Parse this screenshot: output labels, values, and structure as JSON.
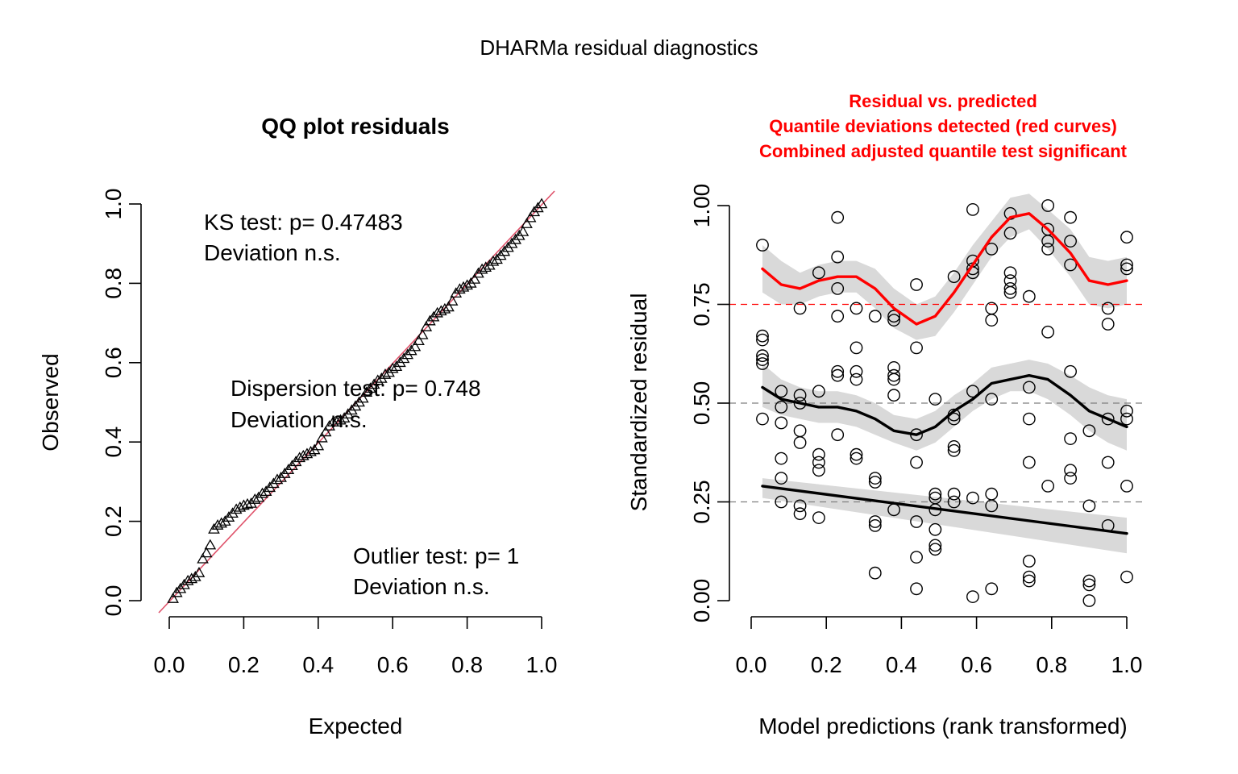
{
  "figure": {
    "title": "DHARMa residual diagnostics",
    "colors": {
      "qq_line": "#DF536B",
      "red": "#FF0000",
      "band": "#D9D9D9",
      "ink": "#000000",
      "ref_dash": "#7F7F7F"
    }
  },
  "chart_data": [
    {
      "type": "scatter",
      "title": "QQ plot residuals",
      "xlabel": "Expected",
      "ylabel": "Observed",
      "xlim": [
        0,
        1
      ],
      "ylim": [
        0,
        1
      ],
      "x_ticks": [
        "0.0",
        "0.2",
        "0.4",
        "0.6",
        "0.8",
        "1.0"
      ],
      "y_ticks": [
        "0.0",
        "0.2",
        "0.4",
        "0.6",
        "0.8",
        "1.0"
      ],
      "point_symbol": "triangle",
      "reference_line": {
        "intercept": 0,
        "slope": 1
      },
      "annotations": [
        [
          "KS test: p= 0.47483",
          "Deviation  n.s."
        ],
        [
          "Dispersion test: p= 0.748",
          "Deviation  n.s."
        ],
        [
          "Outlier test: p= 1",
          "Deviation  n.s."
        ]
      ],
      "series": [
        {
          "x": [
            0.01,
            0.02,
            0.03,
            0.04,
            0.05,
            0.06,
            0.07,
            0.08,
            0.09,
            0.1,
            0.11,
            0.12,
            0.13,
            0.14,
            0.15,
            0.16,
            0.17,
            0.18,
            0.19,
            0.2,
            0.21,
            0.22,
            0.23,
            0.24,
            0.25,
            0.26,
            0.27,
            0.28,
            0.29,
            0.3,
            0.31,
            0.32,
            0.33,
            0.34,
            0.35,
            0.36,
            0.37,
            0.38,
            0.39,
            0.4,
            0.41,
            0.42,
            0.43,
            0.44,
            0.45,
            0.46,
            0.47,
            0.48,
            0.49,
            0.5,
            0.51,
            0.52,
            0.53,
            0.54,
            0.55,
            0.56,
            0.57,
            0.58,
            0.59,
            0.6,
            0.61,
            0.62,
            0.63,
            0.64,
            0.65,
            0.66,
            0.67,
            0.68,
            0.69,
            0.7,
            0.71,
            0.72,
            0.73,
            0.74,
            0.75,
            0.76,
            0.77,
            0.78,
            0.79,
            0.8,
            0.81,
            0.82,
            0.83,
            0.84,
            0.85,
            0.86,
            0.87,
            0.88,
            0.89,
            0.9,
            0.91,
            0.92,
            0.93,
            0.94,
            0.95,
            0.96,
            0.97,
            0.98,
            0.99,
            1.0
          ],
          "y": [
            0.005,
            0.02,
            0.03,
            0.04,
            0.05,
            0.055,
            0.06,
            0.07,
            0.105,
            0.12,
            0.14,
            0.18,
            0.19,
            0.195,
            0.2,
            0.21,
            0.22,
            0.23,
            0.235,
            0.24,
            0.243,
            0.245,
            0.255,
            0.26,
            0.27,
            0.275,
            0.285,
            0.295,
            0.305,
            0.31,
            0.32,
            0.33,
            0.34,
            0.35,
            0.36,
            0.365,
            0.37,
            0.375,
            0.38,
            0.39,
            0.41,
            0.425,
            0.44,
            0.45,
            0.45,
            0.455,
            0.46,
            0.47,
            0.48,
            0.49,
            0.5,
            0.51,
            0.525,
            0.535,
            0.545,
            0.555,
            0.56,
            0.57,
            0.575,
            0.585,
            0.59,
            0.6,
            0.61,
            0.62,
            0.63,
            0.64,
            0.655,
            0.67,
            0.69,
            0.705,
            0.715,
            0.725,
            0.73,
            0.735,
            0.74,
            0.755,
            0.775,
            0.785,
            0.79,
            0.795,
            0.8,
            0.81,
            0.825,
            0.835,
            0.84,
            0.845,
            0.855,
            0.86,
            0.87,
            0.88,
            0.89,
            0.9,
            0.91,
            0.92,
            0.93,
            0.95,
            0.965,
            0.98,
            0.99,
            1.0
          ]
        }
      ]
    },
    {
      "type": "scatter",
      "title_lines": [
        "Residual vs. predicted",
        "Quantile deviations detected (red curves)",
        "Combined adjusted quantile test significant"
      ],
      "xlabel": "Model predictions (rank transformed)",
      "ylabel": "Standardized residual",
      "xlim": [
        0,
        1
      ],
      "ylim": [
        0,
        1
      ],
      "x_ticks": [
        "0.0",
        "0.2",
        "0.4",
        "0.6",
        "0.8",
        "1.0"
      ],
      "y_ticks": [
        "0.00",
        "0.25",
        "0.50",
        "0.75",
        "1.00"
      ],
      "y_tick_values": [
        0,
        0.25,
        0.5,
        0.75,
        1
      ],
      "reference_lines": [
        0.25,
        0.5,
        0.75
      ],
      "points": [
        {
          "x": 0.03,
          "y": 0.9
        },
        {
          "x": 0.03,
          "y": 0.67
        },
        {
          "x": 0.03,
          "y": 0.66
        },
        {
          "x": 0.03,
          "y": 0.62
        },
        {
          "x": 0.03,
          "y": 0.61
        },
        {
          "x": 0.03,
          "y": 0.6
        },
        {
          "x": 0.03,
          "y": 0.46
        },
        {
          "x": 0.08,
          "y": 0.53
        },
        {
          "x": 0.08,
          "y": 0.49
        },
        {
          "x": 0.08,
          "y": 0.45
        },
        {
          "x": 0.08,
          "y": 0.36
        },
        {
          "x": 0.08,
          "y": 0.31
        },
        {
          "x": 0.08,
          "y": 0.25
        },
        {
          "x": 0.13,
          "y": 0.74
        },
        {
          "x": 0.13,
          "y": 0.52
        },
        {
          "x": 0.13,
          "y": 0.5
        },
        {
          "x": 0.13,
          "y": 0.43
        },
        {
          "x": 0.13,
          "y": 0.4
        },
        {
          "x": 0.13,
          "y": 0.24
        },
        {
          "x": 0.13,
          "y": 0.22
        },
        {
          "x": 0.18,
          "y": 0.83
        },
        {
          "x": 0.18,
          "y": 0.53
        },
        {
          "x": 0.18,
          "y": 0.37
        },
        {
          "x": 0.18,
          "y": 0.35
        },
        {
          "x": 0.18,
          "y": 0.33
        },
        {
          "x": 0.18,
          "y": 0.21
        },
        {
          "x": 0.23,
          "y": 0.97
        },
        {
          "x": 0.23,
          "y": 0.87
        },
        {
          "x": 0.23,
          "y": 0.79
        },
        {
          "x": 0.23,
          "y": 0.72
        },
        {
          "x": 0.23,
          "y": 0.58
        },
        {
          "x": 0.23,
          "y": 0.57
        },
        {
          "x": 0.23,
          "y": 0.42
        },
        {
          "x": 0.28,
          "y": 0.74
        },
        {
          "x": 0.28,
          "y": 0.64
        },
        {
          "x": 0.28,
          "y": 0.58
        },
        {
          "x": 0.28,
          "y": 0.56
        },
        {
          "x": 0.28,
          "y": 0.37
        },
        {
          "x": 0.28,
          "y": 0.36
        },
        {
          "x": 0.33,
          "y": 0.72
        },
        {
          "x": 0.33,
          "y": 0.31
        },
        {
          "x": 0.33,
          "y": 0.3
        },
        {
          "x": 0.33,
          "y": 0.2
        },
        {
          "x": 0.33,
          "y": 0.19
        },
        {
          "x": 0.33,
          "y": 0.07
        },
        {
          "x": 0.38,
          "y": 0.72
        },
        {
          "x": 0.38,
          "y": 0.71
        },
        {
          "x": 0.38,
          "y": 0.59
        },
        {
          "x": 0.38,
          "y": 0.57
        },
        {
          "x": 0.38,
          "y": 0.56
        },
        {
          "x": 0.38,
          "y": 0.52
        },
        {
          "x": 0.38,
          "y": 0.23
        },
        {
          "x": 0.44,
          "y": 0.8
        },
        {
          "x": 0.44,
          "y": 0.64
        },
        {
          "x": 0.44,
          "y": 0.42
        },
        {
          "x": 0.44,
          "y": 0.35
        },
        {
          "x": 0.44,
          "y": 0.2
        },
        {
          "x": 0.44,
          "y": 0.11
        },
        {
          "x": 0.44,
          "y": 0.03
        },
        {
          "x": 0.49,
          "y": 0.51
        },
        {
          "x": 0.49,
          "y": 0.27
        },
        {
          "x": 0.49,
          "y": 0.26
        },
        {
          "x": 0.49,
          "y": 0.23
        },
        {
          "x": 0.49,
          "y": 0.18
        },
        {
          "x": 0.49,
          "y": 0.14
        },
        {
          "x": 0.49,
          "y": 0.13
        },
        {
          "x": 0.54,
          "y": 0.82
        },
        {
          "x": 0.54,
          "y": 0.47
        },
        {
          "x": 0.54,
          "y": 0.46
        },
        {
          "x": 0.54,
          "y": 0.39
        },
        {
          "x": 0.54,
          "y": 0.38
        },
        {
          "x": 0.54,
          "y": 0.27
        },
        {
          "x": 0.54,
          "y": 0.25
        },
        {
          "x": 0.59,
          "y": 0.99
        },
        {
          "x": 0.59,
          "y": 0.86
        },
        {
          "x": 0.59,
          "y": 0.84
        },
        {
          "x": 0.59,
          "y": 0.83
        },
        {
          "x": 0.59,
          "y": 0.53
        },
        {
          "x": 0.59,
          "y": 0.26
        },
        {
          "x": 0.59,
          "y": 0.01
        },
        {
          "x": 0.64,
          "y": 0.89
        },
        {
          "x": 0.64,
          "y": 0.74
        },
        {
          "x": 0.64,
          "y": 0.71
        },
        {
          "x": 0.64,
          "y": 0.51
        },
        {
          "x": 0.64,
          "y": 0.27
        },
        {
          "x": 0.64,
          "y": 0.24
        },
        {
          "x": 0.64,
          "y": 0.03
        },
        {
          "x": 0.69,
          "y": 0.98
        },
        {
          "x": 0.69,
          "y": 0.93
        },
        {
          "x": 0.69,
          "y": 0.83
        },
        {
          "x": 0.69,
          "y": 0.81
        },
        {
          "x": 0.69,
          "y": 0.79
        },
        {
          "x": 0.69,
          "y": 0.78
        },
        {
          "x": 0.74,
          "y": 0.77
        },
        {
          "x": 0.74,
          "y": 0.54
        },
        {
          "x": 0.74,
          "y": 0.46
        },
        {
          "x": 0.74,
          "y": 0.35
        },
        {
          "x": 0.74,
          "y": 0.1
        },
        {
          "x": 0.74,
          "y": 0.06
        },
        {
          "x": 0.74,
          "y": 0.05
        },
        {
          "x": 0.79,
          "y": 1.0
        },
        {
          "x": 0.79,
          "y": 0.94
        },
        {
          "x": 0.79,
          "y": 0.91
        },
        {
          "x": 0.79,
          "y": 0.89
        },
        {
          "x": 0.79,
          "y": 0.68
        },
        {
          "x": 0.79,
          "y": 0.29
        },
        {
          "x": 0.85,
          "y": 0.97
        },
        {
          "x": 0.85,
          "y": 0.91
        },
        {
          "x": 0.85,
          "y": 0.85
        },
        {
          "x": 0.85,
          "y": 0.58
        },
        {
          "x": 0.85,
          "y": 0.41
        },
        {
          "x": 0.85,
          "y": 0.33
        },
        {
          "x": 0.85,
          "y": 0.31
        },
        {
          "x": 0.9,
          "y": 0.43
        },
        {
          "x": 0.9,
          "y": 0.24
        },
        {
          "x": 0.9,
          "y": 0.05
        },
        {
          "x": 0.9,
          "y": 0.04
        },
        {
          "x": 0.9,
          "y": 0.0
        },
        {
          "x": 0.95,
          "y": 0.74
        },
        {
          "x": 0.95,
          "y": 0.7
        },
        {
          "x": 0.95,
          "y": 0.46
        },
        {
          "x": 0.95,
          "y": 0.35
        },
        {
          "x": 0.95,
          "y": 0.19
        },
        {
          "x": 1.0,
          "y": 0.92
        },
        {
          "x": 1.0,
          "y": 0.85
        },
        {
          "x": 1.0,
          "y": 0.84
        },
        {
          "x": 1.0,
          "y": 0.48
        },
        {
          "x": 1.0,
          "y": 0.46
        },
        {
          "x": 1.0,
          "y": 0.29
        },
        {
          "x": 1.0,
          "y": 0.06
        }
      ],
      "curves": [
        {
          "quantile": 0.75,
          "color": "#FF0000",
          "x": [
            0.03,
            0.08,
            0.13,
            0.18,
            0.23,
            0.28,
            0.33,
            0.38,
            0.44,
            0.49,
            0.54,
            0.59,
            0.64,
            0.69,
            0.74,
            0.79,
            0.85,
            0.9,
            0.95,
            1.0
          ],
          "y": [
            0.84,
            0.8,
            0.79,
            0.81,
            0.82,
            0.82,
            0.79,
            0.74,
            0.7,
            0.72,
            0.78,
            0.85,
            0.92,
            0.97,
            0.98,
            0.94,
            0.88,
            0.81,
            0.8,
            0.81
          ],
          "band_lower": [
            0.78,
            0.75,
            0.75,
            0.77,
            0.78,
            0.78,
            0.74,
            0.69,
            0.66,
            0.67,
            0.73,
            0.8,
            0.87,
            0.92,
            0.94,
            0.89,
            0.82,
            0.75,
            0.74,
            0.75
          ],
          "band_upper": [
            0.9,
            0.86,
            0.83,
            0.85,
            0.86,
            0.86,
            0.84,
            0.79,
            0.75,
            0.77,
            0.83,
            0.9,
            0.96,
            1.02,
            1.03,
            0.99,
            0.94,
            0.87,
            0.86,
            0.87
          ]
        },
        {
          "quantile": 0.5,
          "color": "#000000",
          "x": [
            0.03,
            0.08,
            0.13,
            0.18,
            0.23,
            0.28,
            0.33,
            0.38,
            0.44,
            0.49,
            0.54,
            0.59,
            0.64,
            0.69,
            0.74,
            0.79,
            0.85,
            0.9,
            0.95,
            1.0
          ],
          "y": [
            0.54,
            0.51,
            0.5,
            0.49,
            0.49,
            0.48,
            0.46,
            0.43,
            0.42,
            0.44,
            0.48,
            0.51,
            0.55,
            0.56,
            0.57,
            0.56,
            0.52,
            0.48,
            0.46,
            0.44
          ],
          "band_lower": [
            0.49,
            0.47,
            0.46,
            0.45,
            0.45,
            0.44,
            0.42,
            0.4,
            0.38,
            0.4,
            0.44,
            0.48,
            0.51,
            0.53,
            0.53,
            0.51,
            0.47,
            0.43,
            0.4,
            0.38
          ],
          "band_upper": [
            0.6,
            0.56,
            0.54,
            0.53,
            0.53,
            0.52,
            0.5,
            0.47,
            0.46,
            0.48,
            0.52,
            0.55,
            0.59,
            0.6,
            0.61,
            0.6,
            0.57,
            0.54,
            0.52,
            0.51
          ]
        },
        {
          "quantile": 0.25,
          "color": "#000000",
          "x": [
            0.03,
            1.0
          ],
          "y": [
            0.29,
            0.17
          ],
          "band_lower": [
            0.26,
            0.12
          ],
          "band_upper": [
            0.31,
            0.21
          ]
        }
      ]
    }
  ]
}
